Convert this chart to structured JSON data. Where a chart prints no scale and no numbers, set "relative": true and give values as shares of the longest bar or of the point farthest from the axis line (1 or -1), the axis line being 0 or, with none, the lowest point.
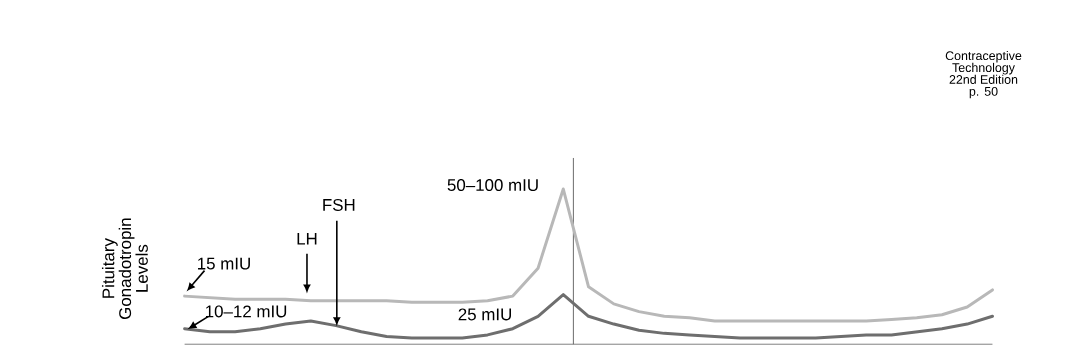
{
  "chart_data": {
    "type": "line",
    "relative": true,
    "ylabel": "Pituitary Gonadotropin Levels",
    "categories": [
      null,
      null,
      null,
      null,
      null,
      null,
      null,
      null,
      null,
      null,
      null,
      null,
      null,
      null,
      null,
      null,
      null,
      null,
      null,
      null,
      null,
      null,
      null,
      null,
      null,
      null,
      null,
      null,
      null,
      null,
      null,
      null,
      null
    ],
    "series": [
      {
        "color": "#b8b8b8",
        "values": [
          0.31,
          0.3,
          0.29,
          0.29,
          0.29,
          0.28,
          0.28,
          0.28,
          0.28,
          0.27,
          0.27,
          0.27,
          0.28,
          0.31,
          0.49,
          1,
          0.37,
          0.26,
          0.21,
          0.18,
          0.17,
          0.15,
          0.15,
          0.15,
          0.15,
          0.15,
          0.15,
          0.15,
          0.16,
          0.17,
          0.19,
          0.24,
          0.35
        ]
      },
      {
        "color": "#6e6e6e",
        "values": [
          0.1,
          0.08,
          0.08,
          0.1,
          0.13,
          0.15,
          0.12,
          0.08,
          0.05,
          0.04,
          0.04,
          0.04,
          0.06,
          0.1,
          0.18,
          0.32,
          0.18,
          0.13,
          0.09,
          0.07,
          0.06,
          0.05,
          0.04,
          0.04,
          0.04,
          0.04,
          0.05,
          0.06,
          0.06,
          0.08,
          0.1,
          0.13,
          0.18
        ]
      }
    ],
    "annotations": [
      "LH",
      "FSH",
      "15 mIU",
      "10–12 mIU",
      "50–100 mIU",
      "25 mIU",
      "Contraceptive Technology 22nd Edition p. 50"
    ]
  }
}
